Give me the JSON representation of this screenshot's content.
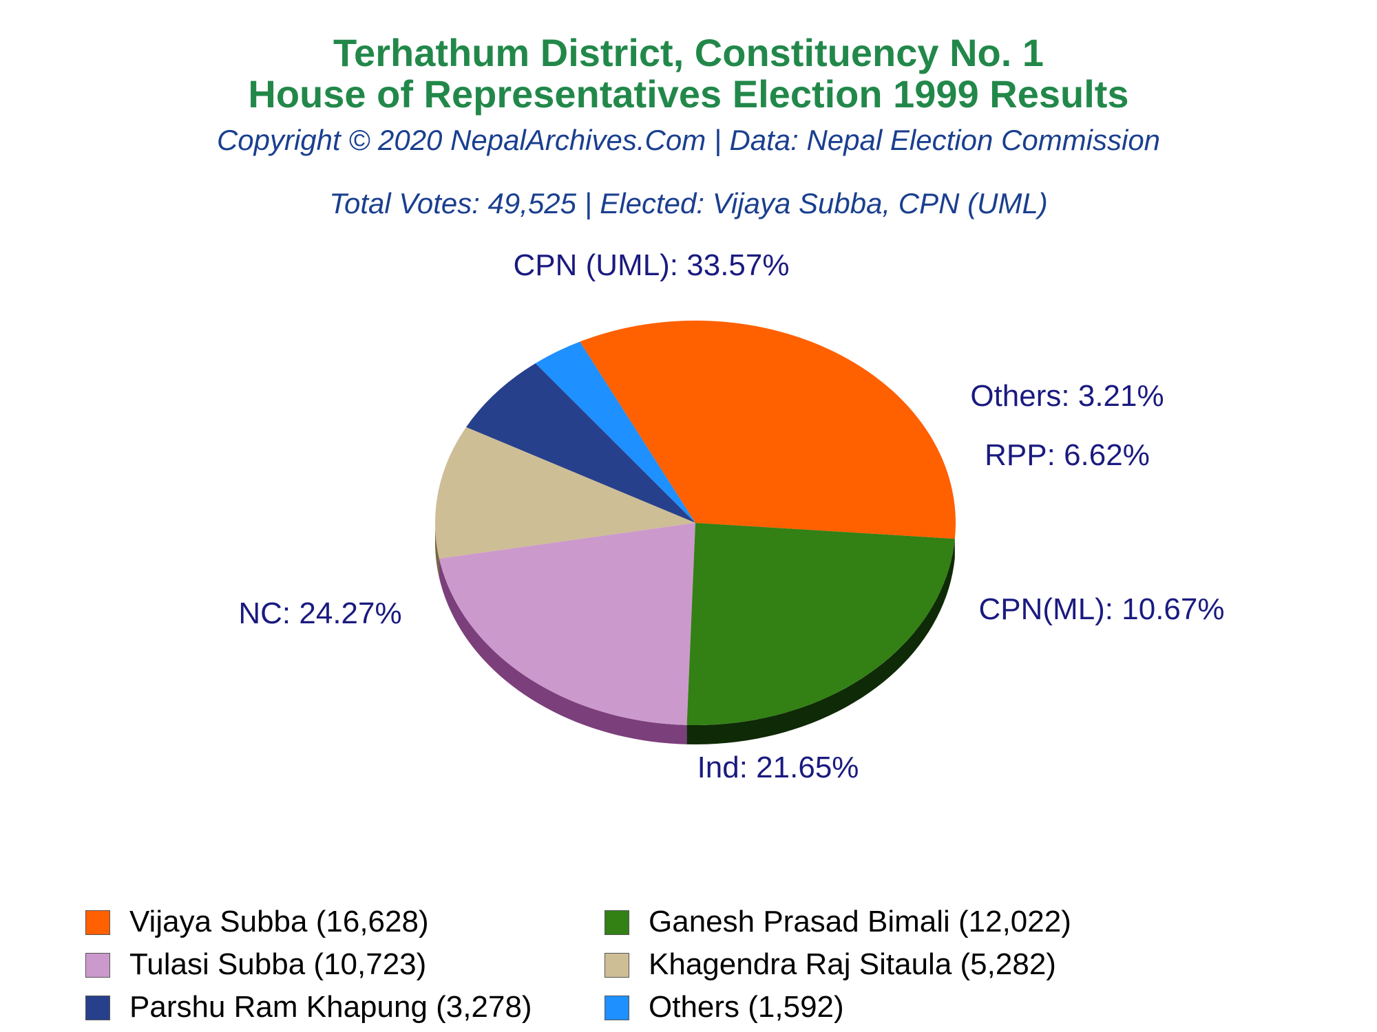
{
  "header": {
    "title_line1": "Terhathum District, Constituency No. 1",
    "title_line2": "House of Representatives Election 1999 Results",
    "copyright": "Copyright © 2020 NepalArchives.Com | Data: Nepal Election Commission",
    "summary": "Total Votes: 49,525 | Elected: Vijaya Subba, CPN (UML)"
  },
  "chart_data": {
    "type": "pie",
    "title": "Terhathum District, Constituency No. 1 House of Representatives Election 1999 Results",
    "slices": [
      {
        "party": "CPN (UML)",
        "label": "CPN (UML): 33.57%",
        "percent": 33.57,
        "candidate": "Vijaya Subba (16,628)",
        "votes": 16628,
        "color": "#ff6000",
        "shade": "#993a00"
      },
      {
        "party": "Others",
        "label": "Others: 3.21%",
        "percent": 3.21,
        "candidate": "Others (1,592)",
        "votes": 1592,
        "color": "#1e90ff",
        "shade": "#12569a"
      },
      {
        "party": "RPP",
        "label": "RPP: 6.62%",
        "percent": 6.62,
        "candidate": "Parshu Ram Khapung (3,278)",
        "votes": 3278,
        "color": "#27408b",
        "shade": "#172654"
      },
      {
        "party": "CPN(ML)",
        "label": "CPN(ML): 10.67%",
        "percent": 10.67,
        "candidate": "Khagendra Raj Sitaula (5,282)",
        "votes": 5282,
        "color": "#cdbe96",
        "shade": "#76663f"
      },
      {
        "party": "Ind",
        "label": "Ind: 21.65%",
        "percent": 21.65,
        "candidate": "Tulasi Subba (10,723)",
        "votes": 10723,
        "color": "#cc99cc",
        "shade": "#7b3f7b"
      },
      {
        "party": "NC",
        "label": "NC: 24.27%",
        "percent": 24.27,
        "candidate": "Ganesh Prasad Bimali (12,022)",
        "votes": 12022,
        "color": "#338015",
        "shade": "#0f2a06"
      }
    ],
    "legend_order": [
      "CPN (UML)",
      "NC",
      "Ind",
      "CPN(ML)",
      "RPP",
      "Others"
    ],
    "legend_position": "bottom"
  }
}
